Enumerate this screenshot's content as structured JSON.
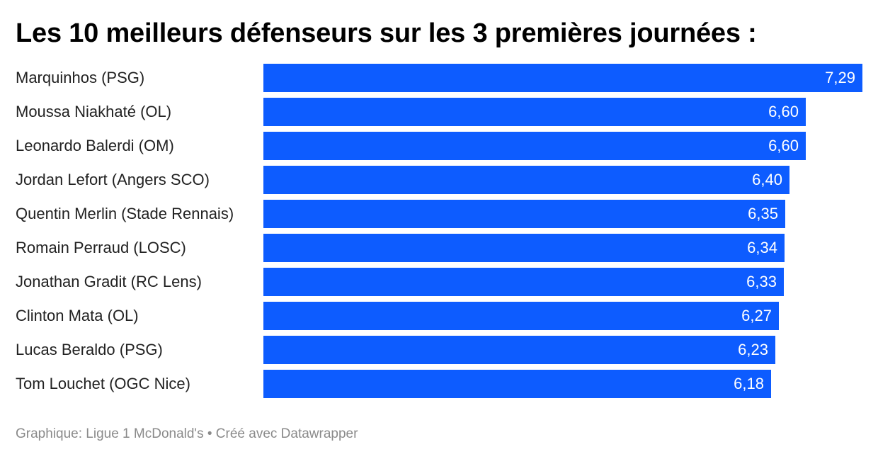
{
  "title": "Les 10 meilleurs défenseurs sur les 3 premières journées :",
  "footer": {
    "prefix": "Graphique: Ligue 1 McDonald's",
    "separator": "•",
    "suffix": "Créé avec Datawrapper"
  },
  "colors": {
    "bar": "#0d5cff",
    "value_text": "#ffffff"
  },
  "chart_data": {
    "type": "bar",
    "orientation": "horizontal",
    "title": "Les 10 meilleurs défenseurs sur les 3 premières journées :",
    "xlabel": "",
    "ylabel": "",
    "xlim": [
      0,
      7.29
    ],
    "grid": false,
    "categories": [
      "Marquinhos (PSG)",
      "Moussa Niakhaté (OL)",
      "Leonardo Balerdi (OM)",
      "Jordan Lefort (Angers SCO)",
      "Quentin Merlin (Stade Rennais)",
      "Romain Perraud (LOSC)",
      "Jonathan Gradit (RC Lens)",
      "Clinton Mata (OL)",
      "Lucas Beraldo (PSG)",
      "Tom Louchet (OGC Nice)"
    ],
    "values": [
      7.29,
      6.6,
      6.6,
      6.4,
      6.35,
      6.34,
      6.33,
      6.27,
      6.23,
      6.18
    ],
    "value_labels": [
      "7,29",
      "6,60",
      "6,60",
      "6,40",
      "6,35",
      "6,34",
      "6,33",
      "6,27",
      "6,23",
      "6,18"
    ]
  }
}
